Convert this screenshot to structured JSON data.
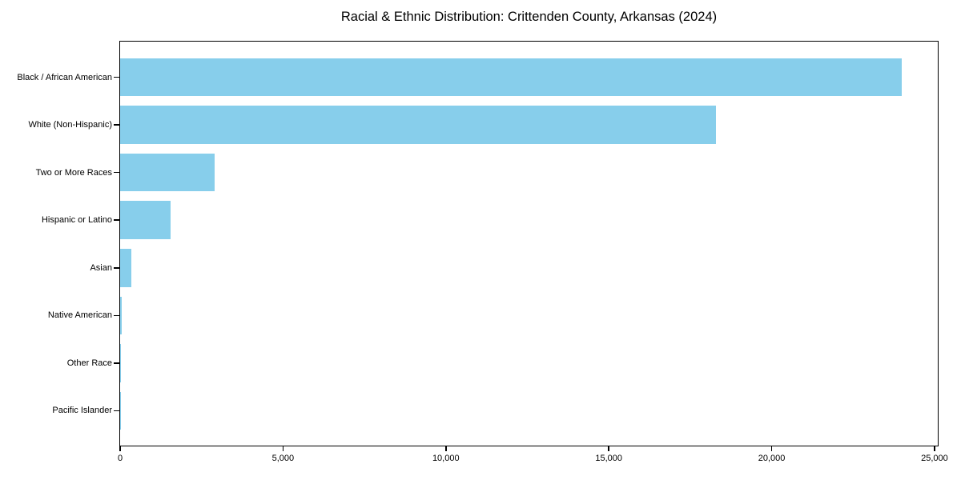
{
  "chart_data": {
    "type": "bar",
    "orientation": "horizontal",
    "title": "Racial & Ethnic Distribution: Crittenden County, Arkansas (2024)",
    "categories": [
      "Black / African American",
      "White (Non-Hispanic)",
      "Two or More Races",
      "Hispanic or Latino",
      "Asian",
      "Native American",
      "Other Race",
      "Pacific Islander"
    ],
    "values": [
      24000,
      18300,
      2900,
      1550,
      350,
      40,
      20,
      10
    ],
    "xlabel": "",
    "ylabel": "",
    "xlim": [
      0,
      25100
    ],
    "xticks": [
      0,
      5000,
      10000,
      15000,
      20000,
      25000
    ],
    "xtick_labels": [
      "0",
      "5,000",
      "10,000",
      "15,000",
      "20,000",
      "25,000"
    ],
    "grid": false,
    "legend": null,
    "bar_color": "#87CEEB",
    "frame_color": "#000000",
    "background_color": "#ffffff"
  }
}
